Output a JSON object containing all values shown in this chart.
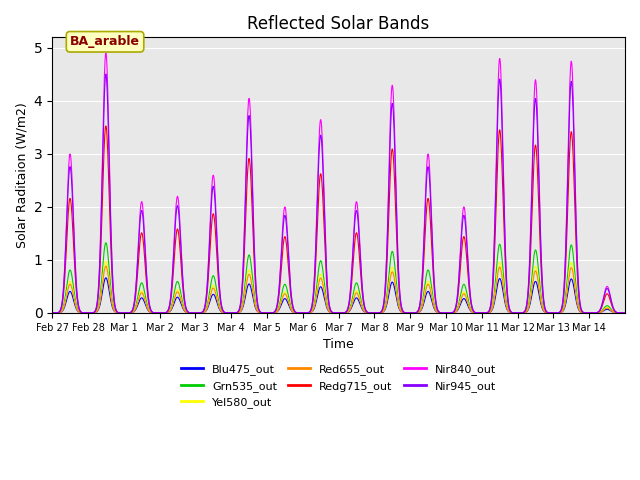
{
  "title": "Reflected Solar Bands",
  "xlabel": "Time",
  "ylabel": "Solar Raditaion (W/m2)",
  "ylim": [
    0,
    5.2
  ],
  "annotation_text": "BA_arable",
  "series": [
    {
      "label": "Blu475_out",
      "color": "#0000FF"
    },
    {
      "label": "Grn535_out",
      "color": "#00CC00"
    },
    {
      "label": "Yel580_out",
      "color": "#FFFF00"
    },
    {
      "label": "Red655_out",
      "color": "#FF8800"
    },
    {
      "label": "Redg715_out",
      "color": "#FF0000"
    },
    {
      "label": "Nir840_out",
      "color": "#FF00FF"
    },
    {
      "label": "Nir945_out",
      "color": "#8800FF"
    }
  ],
  "xtick_labels": [
    "Feb 27",
    "Feb 28",
    "Mar 1",
    "Mar 2",
    "Mar 3",
    "Mar 4",
    "Mar 5",
    "Mar 6",
    "Mar 7",
    "Mar 8",
    "Mar 9",
    "Mar 10",
    "Mar 11",
    "Mar 12",
    "Mar 13",
    "Mar 14"
  ],
  "nir840_peaks": [
    3.0,
    4.9,
    2.1,
    2.2,
    2.6,
    4.05,
    2.0,
    3.65,
    2.1,
    4.3,
    3.0,
    2.0,
    4.8,
    4.4,
    4.75,
    0.5
  ],
  "band_scales": [
    0.135,
    0.27,
    0.2,
    0.18,
    0.72,
    1.0,
    0.92
  ],
  "background_color": "#e8e8e8"
}
